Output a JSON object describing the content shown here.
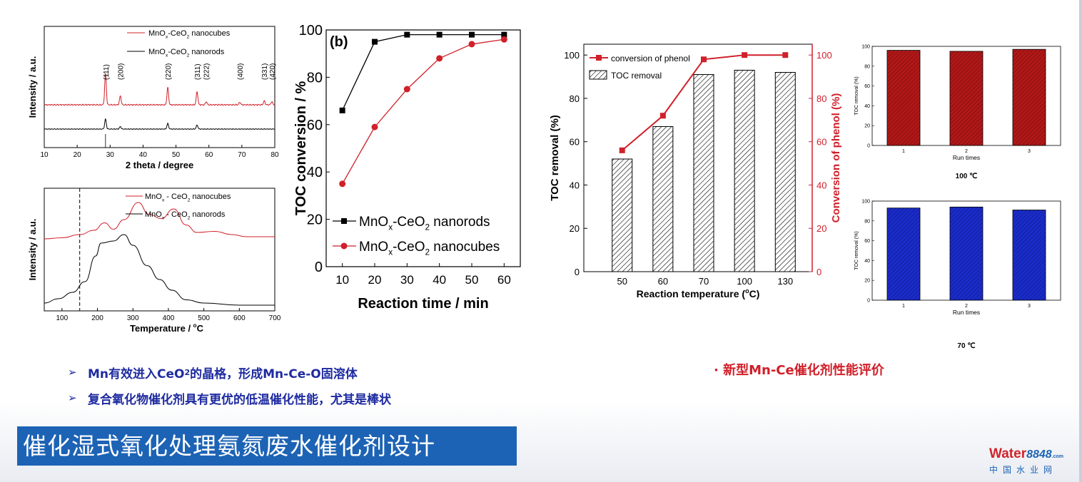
{
  "bullets_left": [
    {
      "pre": "Mn有效进入CeO",
      "sub": "2",
      "post": "的晶格，形成Mn-Ce-O固溶体"
    },
    {
      "pre": "复合氧化物催化剂具有更优的低温催化性能，尤其是棒状",
      "sub": "",
      "post": ""
    }
  ],
  "bullet_right": "新型Mn-Ce催化剂性能评价",
  "title": "催化湿式氧化处理氨氮废水催化剂设计",
  "logo": {
    "brand": "Water",
    "number": "8848",
    "dot_com": ".com",
    "chinese": "中国水业网"
  },
  "colors": {
    "red": "#d0202a",
    "black": "#000000",
    "blue": "#1a2cc8",
    "dark_red": "#b01818",
    "title_bg": "#1d63b5"
  },
  "chart_data": [
    {
      "type": "line",
      "id": "xrd",
      "xlabel": "2 theta / degree",
      "ylabel": "Intensity / a.u.",
      "xlim": [
        10,
        80
      ],
      "xticks": [
        10,
        20,
        30,
        40,
        50,
        60,
        70,
        80
      ],
      "series": [
        {
          "name": "MnOx-CeO2 nanocubes",
          "legend": {
            "a": "MnO",
            "sub": "x",
            "b": "-CeO",
            "sub2": "2",
            "c": " nanocubes"
          },
          "color": "#d0202a",
          "peaks": [
            [
              28.6,
              1.0
            ],
            [
              33.1,
              0.28
            ],
            [
              47.5,
              0.55
            ],
            [
              56.4,
              0.42
            ],
            [
              59.2,
              0.1
            ],
            [
              69.4,
              0.08
            ],
            [
              76.8,
              0.12
            ],
            [
              79.1,
              0.1
            ]
          ]
        },
        {
          "name": "MnOx-CeO2 nanorods",
          "legend": {
            "a": "MnO",
            "sub": "x",
            "b": "-CeO",
            "sub2": "2",
            "c": " nanorods"
          },
          "color": "#000000",
          "peaks": [
            [
              28.6,
              0.5
            ],
            [
              33.1,
              0.12
            ],
            [
              47.5,
              0.28
            ],
            [
              56.4,
              0.2
            ]
          ]
        }
      ],
      "peak_labels": [
        {
          "label": "(111)",
          "x": 28.6
        },
        {
          "label": "(200)",
          "x": 33.1
        },
        {
          "label": "(220)",
          "x": 47.5
        },
        {
          "label": "(311)",
          "x": 56.4
        },
        {
          "label": "(222)",
          "x": 59.1
        },
        {
          "label": "(400)",
          "x": 69.4
        },
        {
          "label": "(331)",
          "x": 76.7
        },
        {
          "label": "(420)",
          "x": 79.1
        }
      ]
    },
    {
      "type": "line",
      "id": "tpr",
      "xlabel": "Temperature / ",
      "xlabel_unit": {
        "deg": "o",
        "unit": "C"
      },
      "ylabel": "Intensity / a.u.",
      "xlim": [
        50,
        700
      ],
      "xticks": [
        100,
        200,
        300,
        400,
        500,
        600,
        700
      ],
      "dashed_line_x": 150,
      "series": [
        {
          "name": "MnOx - CeO2 nanocubes",
          "legend": {
            "a": "MnO",
            "sub": "x",
            "b": " - CeO",
            "sub2": "2",
            "c": " nanocubes"
          },
          "color": "#d0202a",
          "points": [
            [
              50,
              0.62
            ],
            [
              100,
              0.63
            ],
            [
              150,
              0.66
            ],
            [
              190,
              0.7
            ],
            [
              220,
              0.77
            ],
            [
              245,
              0.71
            ],
            [
              275,
              0.8
            ],
            [
              315,
              0.96
            ],
            [
              345,
              0.85
            ],
            [
              380,
              0.81
            ],
            [
              415,
              0.9
            ],
            [
              450,
              0.75
            ],
            [
              480,
              0.68
            ],
            [
              530,
              0.69
            ],
            [
              580,
              0.66
            ],
            [
              620,
              0.64
            ],
            [
              700,
              0.64
            ]
          ]
        },
        {
          "name": "MnOx - CeO2 nanorods",
          "legend": {
            "a": "MnO",
            "sub": "x",
            "b": " - CeO",
            "sub2": "2",
            "c": " nanorods"
          },
          "color": "#000000",
          "points": [
            [
              50,
              0.02
            ],
            [
              90,
              0.06
            ],
            [
              130,
              0.12
            ],
            [
              165,
              0.22
            ],
            [
              195,
              0.46
            ],
            [
              210,
              0.58
            ],
            [
              245,
              0.6
            ],
            [
              275,
              0.66
            ],
            [
              300,
              0.56
            ],
            [
              340,
              0.37
            ],
            [
              375,
              0.24
            ],
            [
              410,
              0.14
            ],
            [
              450,
              0.05
            ],
            [
              500,
              0.02
            ],
            [
              600,
              0.0
            ],
            [
              700,
              0.0
            ]
          ]
        }
      ]
    },
    {
      "type": "line",
      "id": "toc-time",
      "panel_label": "(b)",
      "xlabel": "Reaction time / min",
      "ylabel": "TOC conversion / %",
      "xlim": [
        5,
        65
      ],
      "ylim": [
        0,
        100
      ],
      "xticks": [
        10,
        20,
        30,
        40,
        50,
        60
      ],
      "yticks": [
        0,
        20,
        40,
        60,
        80,
        100
      ],
      "x": [
        10,
        20,
        30,
        40,
        50,
        60
      ],
      "series": [
        {
          "name": "MnOx-CeO2 nanorods",
          "legend": {
            "a": "MnO",
            "sub": "x",
            "b": "-CeO",
            "sub2": "2",
            "c": " nanorods"
          },
          "marker": "square",
          "color": "#000000",
          "values": [
            66,
            95,
            98,
            98,
            98,
            98
          ]
        },
        {
          "name": "MnOx-CeO2 nanocubes",
          "legend": {
            "a": "MnO",
            "sub": "x",
            "b": "-CeO",
            "sub2": "2",
            "c": " nanocubes"
          },
          "marker": "circle",
          "color": "#d0202a",
          "values": [
            35,
            59,
            75,
            88,
            94,
            96
          ]
        }
      ]
    },
    {
      "type": "bar",
      "id": "toc-temp",
      "categories": [
        "50",
        "60",
        "70",
        "100",
        "130"
      ],
      "xlabel": "Reaction temperature (",
      "xlabel_unit": {
        "deg": "o",
        "unit": "C)"
      },
      "ylabel": "TOC removal (%)",
      "ylabel_right": "Conversion of phenol (%)",
      "ylim": [
        0,
        105
      ],
      "ylim_right": [
        0,
        105
      ],
      "yticks": [
        0,
        20,
        40,
        60,
        80,
        100
      ],
      "bars": {
        "name": "TOC removal",
        "values": [
          52,
          67,
          91,
          93,
          92
        ]
      },
      "line": {
        "name": "conversion of phenol",
        "color": "#d0202a",
        "values": [
          56,
          72,
          98,
          100,
          100
        ]
      }
    },
    {
      "type": "bar",
      "id": "run-100",
      "caption": "100 ℃",
      "categories": [
        "1",
        "2",
        "3"
      ],
      "xlabel": "Run times",
      "ylabel": "TOC removal (%)",
      "ylim": [
        0,
        100
      ],
      "yticks": [
        0,
        20,
        40,
        60,
        80,
        100
      ],
      "color": "#b01818",
      "values": [
        96,
        95,
        97
      ]
    },
    {
      "type": "bar",
      "id": "run-70",
      "caption": "70 ℃",
      "categories": [
        "1",
        "2",
        "3"
      ],
      "xlabel": "Run times",
      "ylabel": "TOC removal (%)",
      "ylim": [
        0,
        100
      ],
      "yticks": [
        0,
        20,
        40,
        60,
        80,
        100
      ],
      "color": "#1a2cc8",
      "values": [
        93,
        94,
        91
      ]
    }
  ]
}
